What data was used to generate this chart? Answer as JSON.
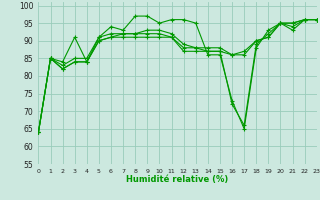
{
  "xlabel": "Humidité relative (%)",
  "background_color": "#cce8df",
  "grid_color": "#99ccbb",
  "line_color": "#009900",
  "xlim": [
    0,
    23
  ],
  "ylim": [
    55,
    101
  ],
  "yticks": [
    55,
    60,
    65,
    70,
    75,
    80,
    85,
    90,
    95,
    100
  ],
  "xticks": [
    0,
    1,
    2,
    3,
    4,
    5,
    6,
    7,
    8,
    9,
    10,
    11,
    12,
    13,
    14,
    15,
    16,
    17,
    18,
    19,
    20,
    21,
    22,
    23
  ],
  "series": [
    [
      64,
      85,
      84,
      91,
      84,
      91,
      94,
      93,
      97,
      97,
      95,
      96,
      96,
      95,
      86,
      86,
      73,
      65,
      88,
      93,
      95,
      94,
      96,
      96
    ],
    [
      64,
      85,
      82,
      84,
      84,
      90,
      91,
      91,
      91,
      91,
      91,
      91,
      87,
      87,
      87,
      87,
      86,
      86,
      90,
      91,
      95,
      95,
      96,
      96
    ],
    [
      64,
      85,
      83,
      85,
      85,
      91,
      92,
      92,
      92,
      93,
      93,
      92,
      89,
      88,
      87,
      87,
      72,
      66,
      89,
      92,
      95,
      93,
      96,
      96
    ],
    [
      64,
      85,
      82,
      84,
      84,
      90,
      91,
      92,
      92,
      92,
      92,
      91,
      88,
      88,
      88,
      88,
      86,
      87,
      90,
      91,
      95,
      95,
      96,
      96
    ]
  ]
}
